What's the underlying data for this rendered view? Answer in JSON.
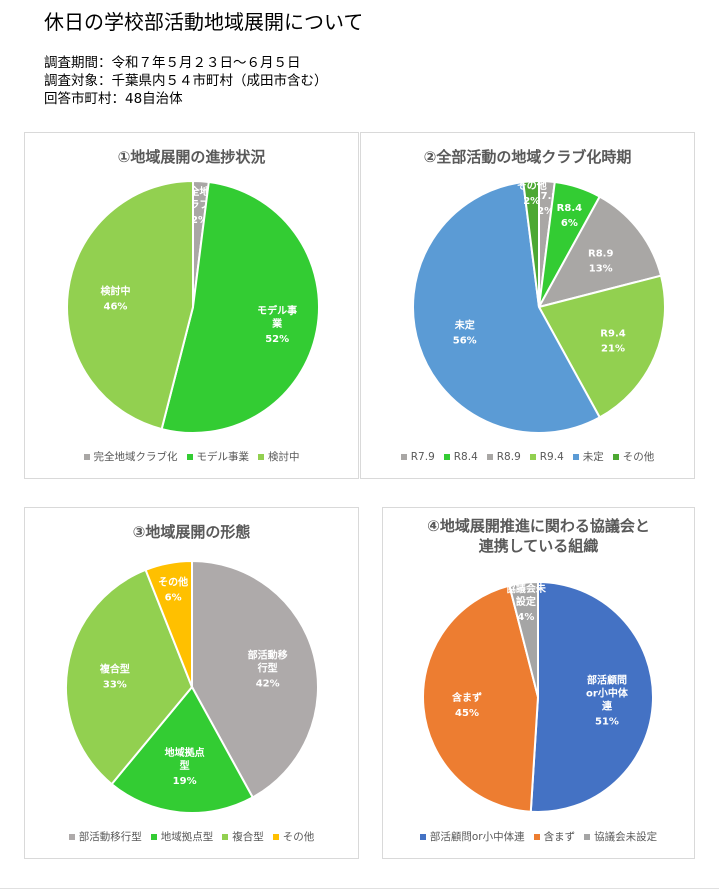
{
  "header": {
    "title": "休日の学校部活動地域展開について",
    "lines": [
      "調査期間：令和７年５月２３日～６月５日",
      "調査対象：千葉県内５４市町村（成田市含む）",
      "回答市町村：48自治体"
    ]
  },
  "chart_data": [
    {
      "type": "pie",
      "title": "①地域展開の進捗状況",
      "slices": [
        {
          "label": "完全地域クラブ化",
          "label_lines": [
            "完全地域",
            "クラブ化"
          ],
          "value": 2,
          "value_text": "2%",
          "color": "#a9a7a5"
        },
        {
          "label": "モデル事業",
          "label_lines": [
            "モデル事",
            "業"
          ],
          "value": 52,
          "value_text": "52%",
          "color": "#33cc33"
        },
        {
          "label": "検討中",
          "label_lines": [
            "検討中"
          ],
          "value": 46,
          "value_text": "46%",
          "color": "#92d050"
        }
      ],
      "legend_position": "bottom"
    },
    {
      "type": "pie",
      "title": "②全部活動の地域クラブ化時期",
      "slices": [
        {
          "label": "R7.9",
          "label_lines": [
            "R7.9"
          ],
          "value": 2,
          "value_text": "2%",
          "color": "#a9a7a5"
        },
        {
          "label": "R8.4",
          "label_lines": [
            "R8.4"
          ],
          "value": 6,
          "value_text": "6%",
          "color": "#33cc33"
        },
        {
          "label": "R8.9",
          "label_lines": [
            "R8.9"
          ],
          "value": 13,
          "value_text": "13%",
          "color": "#a9a7a5"
        },
        {
          "label": "R9.4",
          "label_lines": [
            "R9.4"
          ],
          "value": 21,
          "value_text": "21%",
          "color": "#92d050"
        },
        {
          "label": "未定",
          "label_lines": [
            "未定"
          ],
          "value": 56,
          "value_text": "56%",
          "color": "#5b9bd5"
        },
        {
          "label": "その他",
          "label_lines": [
            "その他"
          ],
          "value": 2,
          "value_text": "2%",
          "color": "#4ca832"
        }
      ],
      "legend_position": "bottom"
    },
    {
      "type": "pie",
      "title": "③地域展開の形態",
      "slices": [
        {
          "label": "部活動移行型",
          "label_lines": [
            "部活動移",
            "行型"
          ],
          "value": 42,
          "value_text": "42%",
          "color": "#aeaaaa"
        },
        {
          "label": "地域拠点型",
          "label_lines": [
            "地域拠点",
            "型"
          ],
          "value": 19,
          "value_text": "19%",
          "color": "#33cc33"
        },
        {
          "label": "複合型",
          "label_lines": [
            "複合型"
          ],
          "value": 33,
          "value_text": "33%",
          "color": "#92d050"
        },
        {
          "label": "その他",
          "label_lines": [
            "その他"
          ],
          "value": 6,
          "value_text": "6%",
          "color": "#ffc000"
        }
      ],
      "legend_position": "bottom"
    },
    {
      "type": "pie",
      "title": "④地域展開推進に関わる協議会と連携している組織",
      "title_lines": [
        "④地域展開推進に関わる協議会と",
        "連携している組織"
      ],
      "slices": [
        {
          "label": "部活顧問or小中体連",
          "label_lines": [
            "部活顧問",
            "or小中体",
            "連"
          ],
          "value": 51,
          "value_text": "51%",
          "color": "#4472c4"
        },
        {
          "label": "含まず",
          "label_lines": [
            "含まず"
          ],
          "value": 45,
          "value_text": "45%",
          "color": "#ed7d31"
        },
        {
          "label": "協議会未設定",
          "label_lines": [
            "協議会未",
            "設定"
          ],
          "value": 4,
          "value_text": "4%",
          "color": "#a5a5a5"
        }
      ],
      "legend_position": "bottom"
    }
  ]
}
